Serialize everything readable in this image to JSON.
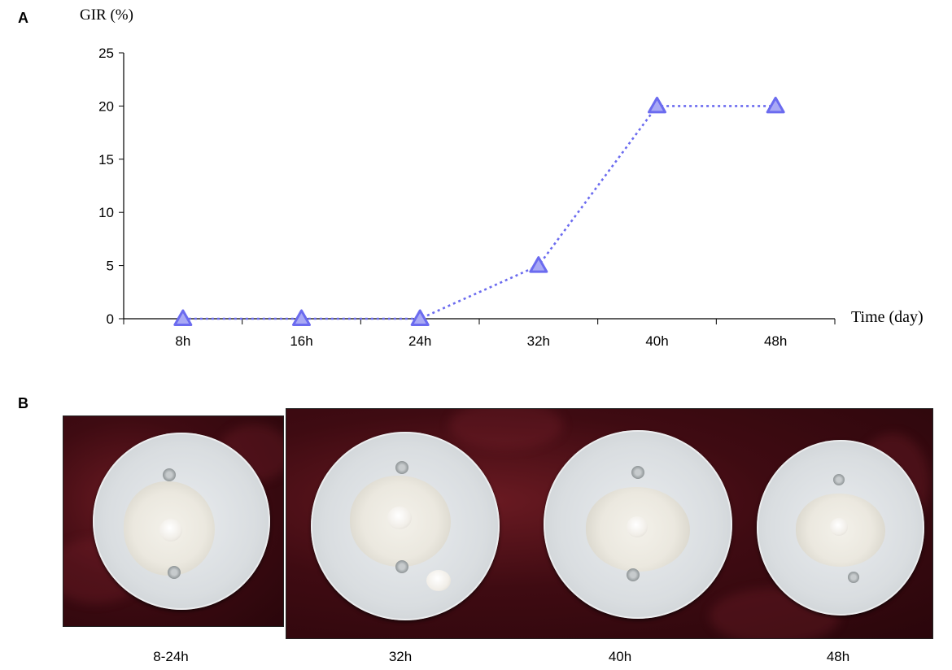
{
  "panel_a_label": "A",
  "panel_b_label": "B",
  "chart_data": {
    "type": "line",
    "ylabel": "GIR (%)",
    "xlabel": "Time (day)",
    "categories": [
      "8h",
      "16h",
      "24h",
      "32h",
      "40h",
      "48h"
    ],
    "values": [
      0,
      0,
      0,
      5,
      20,
      20
    ],
    "ylim": [
      0,
      25
    ],
    "yticks": [
      0,
      5,
      10,
      15,
      20,
      25
    ],
    "grid": false,
    "marker": "triangle",
    "line_style": "dotted",
    "color": "#6b6bef"
  },
  "photos": {
    "captions": [
      "8-24h",
      "32h",
      "40h",
      "48h"
    ]
  }
}
